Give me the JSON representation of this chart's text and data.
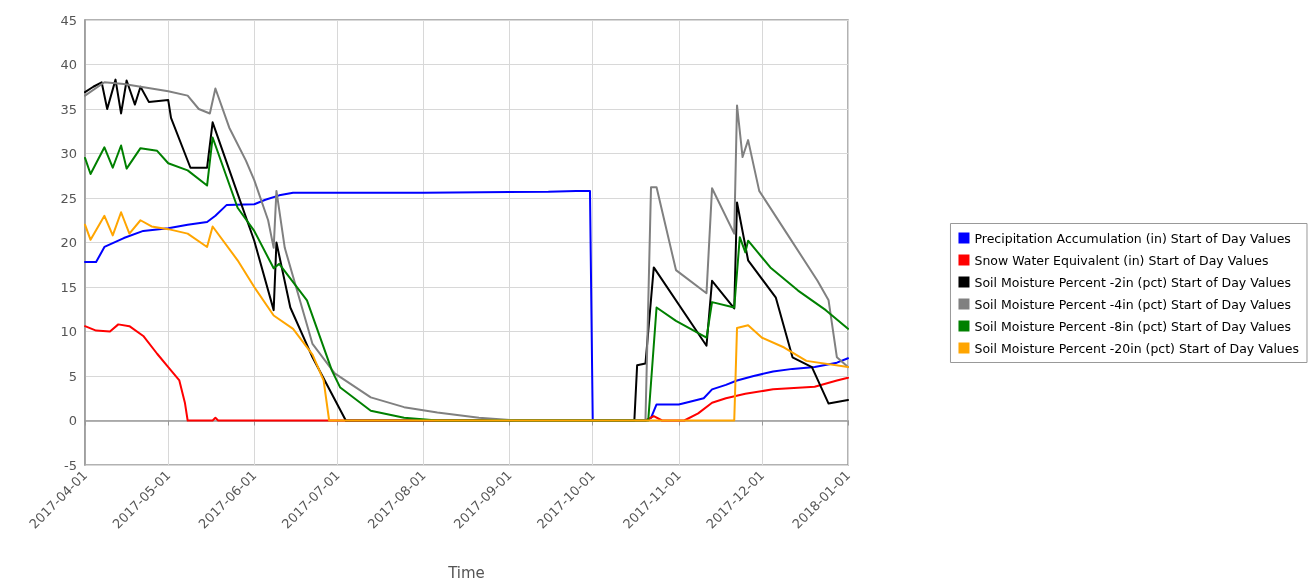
{
  "chart_data": {
    "type": "line",
    "xlabel": "Time",
    "xlim": [
      "2017-04-01",
      "2018-01-01"
    ],
    "xticks": [
      "2017-04-01",
      "2017-05-01",
      "2017-06-01",
      "2017-07-01",
      "2017-08-01",
      "2017-09-01",
      "2017-10-01",
      "2017-11-01",
      "2017-12-01",
      "2018-01-01"
    ],
    "ylim": [
      -5,
      45
    ],
    "yticks": [
      -5,
      0,
      5,
      10,
      15,
      20,
      25,
      30,
      35,
      40,
      45
    ],
    "grid": true,
    "legend": "right",
    "marker": "none",
    "line_style": "solid",
    "series": [
      {
        "name": "Precipitation Accumulation (in) Start of Day Values",
        "color": "#0000ff",
        "x": [
          "2017-04-01",
          "2017-04-05",
          "2017-04-08",
          "2017-04-15",
          "2017-04-22",
          "2017-05-01",
          "2017-05-08",
          "2017-05-15",
          "2017-05-18",
          "2017-05-22",
          "2017-06-01",
          "2017-06-05",
          "2017-06-10",
          "2017-06-15",
          "2017-08-01",
          "2017-09-15",
          "2017-09-25",
          "2017-09-30",
          "2017-10-01",
          "2017-10-20",
          "2017-10-22",
          "2017-10-24",
          "2017-11-01",
          "2017-11-05",
          "2017-11-10",
          "2017-11-13",
          "2017-11-18",
          "2017-11-22",
          "2017-11-28",
          "2017-12-05",
          "2017-12-12",
          "2017-12-20",
          "2017-12-28",
          "2018-01-01"
        ],
        "values": [
          17.8,
          17.8,
          19.5,
          20.5,
          21.3,
          21.6,
          22.0,
          22.3,
          23.0,
          24.2,
          24.3,
          24.8,
          25.3,
          25.6,
          25.6,
          25.7,
          25.8,
          25.8,
          0,
          0,
          0.3,
          1.8,
          1.8,
          2.1,
          2.5,
          3.5,
          4.0,
          4.5,
          5.0,
          5.5,
          5.8,
          6.0,
          6.5,
          7.0
        ]
      },
      {
        "name": "Snow Water Equivalent (in) Start of Day Values",
        "color": "#ff0000",
        "x": [
          "2017-04-01",
          "2017-04-05",
          "2017-04-10",
          "2017-04-13",
          "2017-04-17",
          "2017-04-22",
          "2017-04-27",
          "2017-05-01",
          "2017-05-05",
          "2017-05-07",
          "2017-05-08",
          "2017-05-17",
          "2017-05-18",
          "2017-05-19",
          "2017-10-20",
          "2017-10-23",
          "2017-10-26",
          "2017-11-03",
          "2017-11-08",
          "2017-11-13",
          "2017-11-18",
          "2017-11-25",
          "2017-12-05",
          "2017-12-20",
          "2017-12-28",
          "2018-01-01"
        ],
        "values": [
          10.6,
          10.1,
          10.0,
          10.8,
          10.6,
          9.5,
          7.5,
          6.0,
          4.5,
          2.0,
          0,
          0,
          0.3,
          0,
          0,
          0.5,
          0,
          0,
          0.8,
          2.0,
          2.5,
          3.0,
          3.5,
          3.8,
          4.5,
          4.8
        ]
      },
      {
        "name": "Soil Moisture Percent -2in (pct) Start of Day Values",
        "color": "#000000",
        "x": [
          "2017-04-01",
          "2017-04-04",
          "2017-04-07",
          "2017-04-09",
          "2017-04-12",
          "2017-04-14",
          "2017-04-16",
          "2017-04-19",
          "2017-04-21",
          "2017-04-24",
          "2017-05-01",
          "2017-05-02",
          "2017-05-09",
          "2017-05-15",
          "2017-05-17",
          "2017-05-26",
          "2017-06-01",
          "2017-06-08",
          "2017-06-09",
          "2017-06-14",
          "2017-06-22",
          "2017-07-04",
          "2017-10-16",
          "2017-10-17",
          "2017-10-20",
          "2017-10-23",
          "2017-11-11",
          "2017-11-13",
          "2017-11-21",
          "2017-11-22",
          "2017-11-26",
          "2017-12-06",
          "2017-12-12",
          "2017-12-19",
          "2017-12-25",
          "2018-01-01"
        ],
        "values": [
          36.9,
          37.5,
          38.0,
          35.0,
          38.3,
          34.5,
          38.2,
          35.5,
          37.5,
          35.8,
          36.0,
          34.0,
          28.4,
          28.4,
          33.5,
          25.5,
          20.2,
          12.4,
          20.0,
          12.7,
          7.1,
          0,
          0,
          6.2,
          6.4,
          17.2,
          8.4,
          15.7,
          12.6,
          24.5,
          18.0,
          13.8,
          7.1,
          6.0,
          1.9,
          2.3
        ]
      },
      {
        "name": "Soil Moisture Percent -4in (pct) Start of Day Values",
        "color": "#808080",
        "x": [
          "2017-04-01",
          "2017-04-08",
          "2017-04-15",
          "2017-05-01",
          "2017-05-08",
          "2017-05-12",
          "2017-05-16",
          "2017-05-18",
          "2017-05-23",
          "2017-05-29",
          "2017-06-01",
          "2017-06-06",
          "2017-06-08",
          "2017-06-09",
          "2017-06-12",
          "2017-06-22",
          "2017-06-30",
          "2017-07-13",
          "2017-07-25",
          "2017-08-06",
          "2017-08-21",
          "2017-09-03",
          "2017-10-20",
          "2017-10-22",
          "2017-10-24",
          "2017-10-31",
          "2017-11-11",
          "2017-11-13",
          "2017-11-21",
          "2017-11-22",
          "2017-11-24",
          "2017-11-26",
          "2017-11-30",
          "2017-12-10",
          "2017-12-21",
          "2017-12-25",
          "2017-12-28",
          "2018-01-01"
        ],
        "values": [
          36.5,
          38.0,
          37.8,
          37.0,
          36.5,
          35.0,
          34.5,
          37.3,
          32.9,
          29.2,
          27.0,
          22.5,
          19.4,
          25.8,
          19.4,
          8.6,
          5.3,
          2.6,
          1.5,
          0.9,
          0.3,
          0,
          0,
          26.2,
          26.2,
          16.9,
          14.3,
          26.1,
          21.0,
          35.4,
          29.6,
          31.5,
          25.8,
          21.0,
          15.7,
          13.5,
          7.1,
          6.0
        ]
      },
      {
        "name": "Soil Moisture Percent -8in (pct) Start of Day Values",
        "color": "#008000",
        "x": [
          "2017-04-01",
          "2017-04-03",
          "2017-04-08",
          "2017-04-11",
          "2017-04-14",
          "2017-04-16",
          "2017-04-21",
          "2017-04-27",
          "2017-05-01",
          "2017-05-08",
          "2017-05-15",
          "2017-05-17",
          "2017-05-26",
          "2017-06-01",
          "2017-06-08",
          "2017-06-10",
          "2017-06-20",
          "2017-06-29",
          "2017-07-02",
          "2017-07-13",
          "2017-07-25",
          "2017-08-06",
          "2017-10-21",
          "2017-10-24",
          "2017-10-31",
          "2017-11-11",
          "2017-11-13",
          "2017-11-21",
          "2017-11-23",
          "2017-11-25",
          "2017-11-26",
          "2017-12-04",
          "2017-12-14",
          "2017-12-24",
          "2018-01-01"
        ],
        "values": [
          29.5,
          27.7,
          30.7,
          28.4,
          30.9,
          28.3,
          30.6,
          30.3,
          28.9,
          28.1,
          26.4,
          31.8,
          23.9,
          21.3,
          17.1,
          17.6,
          13.5,
          5.6,
          3.7,
          1.1,
          0.3,
          0,
          0,
          12.7,
          11.2,
          9.3,
          13.3,
          12.7,
          20.6,
          18.9,
          20.2,
          17.2,
          14.6,
          12.4,
          10.3
        ]
      },
      {
        "name": "Soil Moisture Percent -20in (pct) Start of Day Values",
        "color": "#ffa500",
        "x": [
          "2017-04-01",
          "2017-04-03",
          "2017-04-08",
          "2017-04-11",
          "2017-04-14",
          "2017-04-17",
          "2017-04-21",
          "2017-04-25",
          "2017-05-01",
          "2017-05-08",
          "2017-05-15",
          "2017-05-17",
          "2017-05-26",
          "2017-06-01",
          "2017-06-08",
          "2017-06-15",
          "2017-06-22",
          "2017-06-26",
          "2017-06-28",
          "2017-11-21",
          "2017-11-22",
          "2017-11-26",
          "2017-12-01",
          "2017-12-09",
          "2017-12-17",
          "2018-01-01"
        ],
        "values": [
          22.0,
          20.3,
          23.0,
          20.8,
          23.4,
          21.0,
          22.5,
          21.8,
          21.5,
          21.0,
          19.5,
          21.8,
          18.0,
          15.0,
          11.8,
          10.3,
          7.4,
          4.5,
          0,
          0,
          10.4,
          10.7,
          9.3,
          8.2,
          6.7,
          6.0
        ]
      }
    ]
  }
}
